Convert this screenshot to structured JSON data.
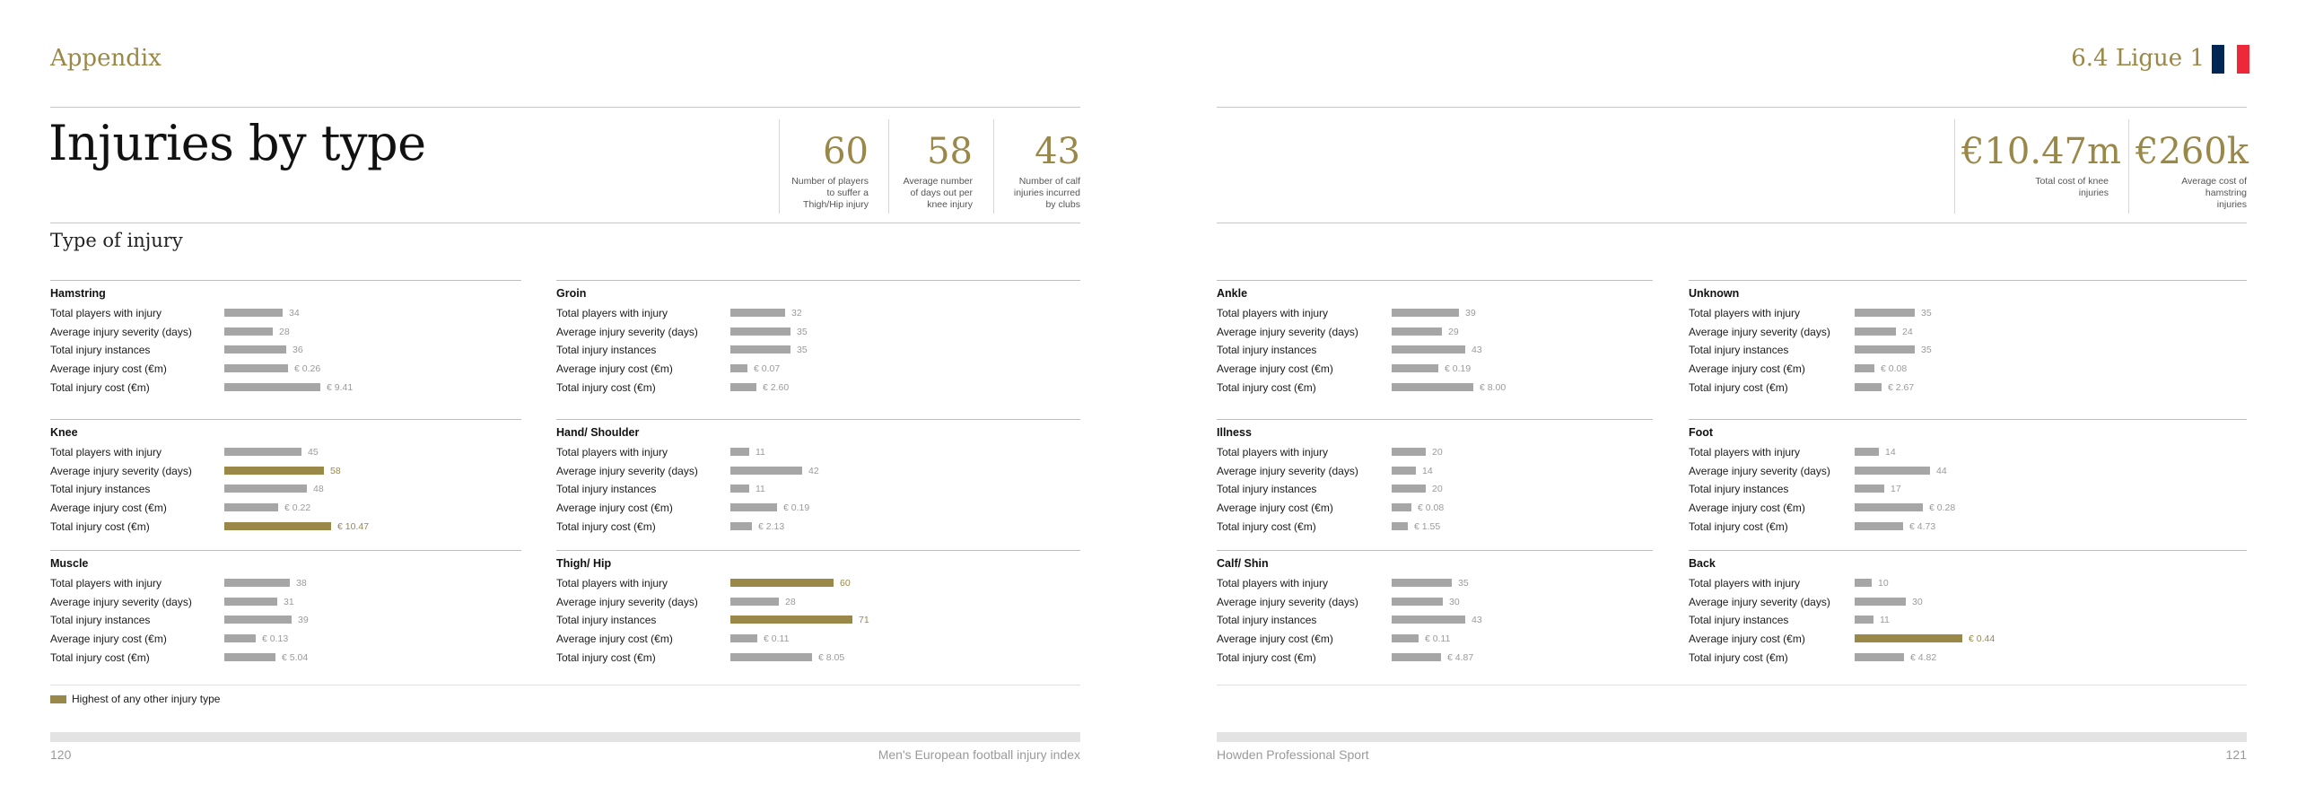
{
  "left_page": {
    "section": "Appendix",
    "title": "Injuries by type",
    "subtitle": "Type of injury",
    "stats": [
      {
        "value": "60",
        "label": "Number of players to suffer a Thigh/Hip injury"
      },
      {
        "value": "58",
        "label": "Average number of days out per knee injury"
      },
      {
        "value": "43",
        "label": "Number of calf injuries incurred by clubs"
      }
    ],
    "legend": "Highest of any other injury type",
    "page_number": "120",
    "footer": "Men's European football injury index"
  },
  "right_page": {
    "section": "6.4 Ligue 1",
    "flag_colors": [
      "#002654",
      "#ffffff",
      "#ed2939"
    ],
    "stats": [
      {
        "value": "€10.47m",
        "label": "Total cost of knee injuries"
      },
      {
        "value": "€260k",
        "label": "Average cost of hamstring injuries"
      }
    ],
    "page_number": "121",
    "footer": "Howden Professional Sport"
  },
  "metric_labels": [
    "Total players with injury",
    "Average injury severity (days)",
    "Total injury instances",
    "Average injury cost (€m)",
    "Total injury cost (€m)"
  ],
  "highlight_color": "#9a8848",
  "bar_color": "#a6a6a6",
  "chart_data": {
    "type": "bar",
    "categories": [
      "Total players with injury",
      "Average injury severity (days)",
      "Total injury instances",
      "Average injury cost (€m)",
      "Total injury cost (€m)"
    ],
    "injury_types": [
      {
        "name": "Hamstring",
        "values": [
          34,
          28,
          36,
          0.26,
          9.41
        ],
        "labels": [
          "34",
          "28",
          "36",
          "€ 0.26",
          "€ 9.41"
        ],
        "highlight": [
          false,
          false,
          false,
          false,
          false
        ]
      },
      {
        "name": "Groin",
        "values": [
          32,
          35,
          35,
          0.07,
          2.6
        ],
        "labels": [
          "32",
          "35",
          "35",
          "€ 0.07",
          "€ 2.60"
        ],
        "highlight": [
          false,
          false,
          false,
          false,
          false
        ]
      },
      {
        "name": "Knee",
        "values": [
          45,
          58,
          48,
          0.22,
          10.47
        ],
        "labels": [
          "45",
          "58",
          "48",
          "€ 0.22",
          "€ 10.47"
        ],
        "highlight": [
          false,
          true,
          false,
          false,
          true
        ]
      },
      {
        "name": "Hand/ Shoulder",
        "values": [
          11,
          42,
          11,
          0.19,
          2.13
        ],
        "labels": [
          "11",
          "42",
          "11",
          "€ 0.19",
          "€ 2.13"
        ],
        "highlight": [
          false,
          false,
          false,
          false,
          false
        ]
      },
      {
        "name": "Muscle",
        "values": [
          38,
          31,
          39,
          0.13,
          5.04
        ],
        "labels": [
          "38",
          "31",
          "39",
          "€ 0.13",
          "€ 5.04"
        ],
        "highlight": [
          false,
          false,
          false,
          false,
          false
        ]
      },
      {
        "name": "Thigh/ Hip",
        "values": [
          60,
          28,
          71,
          0.11,
          8.05
        ],
        "labels": [
          "60",
          "28",
          "71",
          "€ 0.11",
          "€ 8.05"
        ],
        "highlight": [
          true,
          false,
          true,
          false,
          false
        ]
      },
      {
        "name": "Ankle",
        "values": [
          39,
          29,
          43,
          0.19,
          8.0
        ],
        "labels": [
          "39",
          "29",
          "43",
          "€ 0.19",
          "€ 8.00"
        ],
        "highlight": [
          false,
          false,
          false,
          false,
          false
        ]
      },
      {
        "name": "Unknown",
        "values": [
          35,
          24,
          35,
          0.08,
          2.67
        ],
        "labels": [
          "35",
          "24",
          "35",
          "€ 0.08",
          "€ 2.67"
        ],
        "highlight": [
          false,
          false,
          false,
          false,
          false
        ]
      },
      {
        "name": "Illness",
        "values": [
          20,
          14,
          20,
          0.08,
          1.55
        ],
        "labels": [
          "20",
          "14",
          "20",
          "€ 0.08",
          "€ 1.55"
        ],
        "highlight": [
          false,
          false,
          false,
          false,
          false
        ]
      },
      {
        "name": "Foot",
        "values": [
          14,
          44,
          17,
          0.28,
          4.73
        ],
        "labels": [
          "14",
          "44",
          "17",
          "€ 0.28",
          "€ 4.73"
        ],
        "highlight": [
          false,
          false,
          false,
          false,
          false
        ]
      },
      {
        "name": "Calf/ Shin",
        "values": [
          35,
          30,
          43,
          0.11,
          4.87
        ],
        "labels": [
          "35",
          "30",
          "43",
          "€ 0.11",
          "€ 4.87"
        ],
        "highlight": [
          false,
          false,
          false,
          false,
          false
        ]
      },
      {
        "name": "Back",
        "values": [
          10,
          30,
          11,
          0.44,
          4.82
        ],
        "labels": [
          "10",
          "30",
          "11",
          "€ 0.44",
          "€ 4.82"
        ],
        "highlight": [
          false,
          false,
          false,
          true,
          false
        ]
      }
    ]
  }
}
